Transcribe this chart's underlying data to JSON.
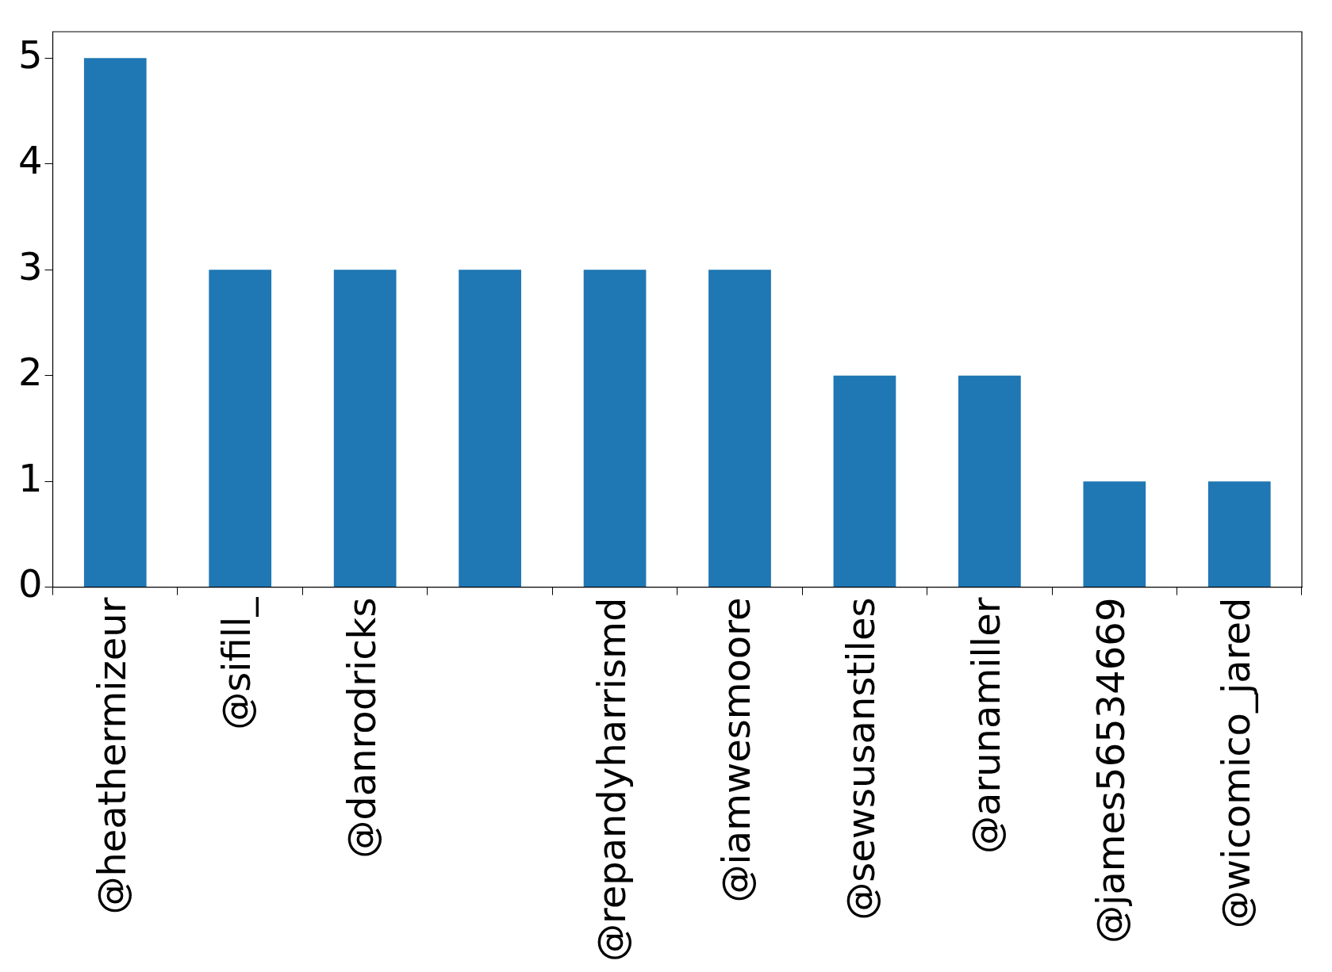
{
  "chart_data": {
    "type": "bar",
    "categories": [
      "@heathermizeur",
      "@sifill_",
      "@danrodricks",
      null,
      "@repandyharrismd",
      "@iamwesmoore",
      "@sewsusanstiles",
      "@arunamiller",
      "@james56534669",
      "@wicomico_jared"
    ],
    "values": [
      5,
      3,
      3,
      3,
      3,
      3,
      2,
      2,
      1,
      1
    ],
    "color": "#1f77b4",
    "ylim": [
      0,
      5.25
    ],
    "yticks": [
      0,
      1,
      2,
      3,
      4,
      5
    ],
    "grid": false,
    "legend": false
  }
}
